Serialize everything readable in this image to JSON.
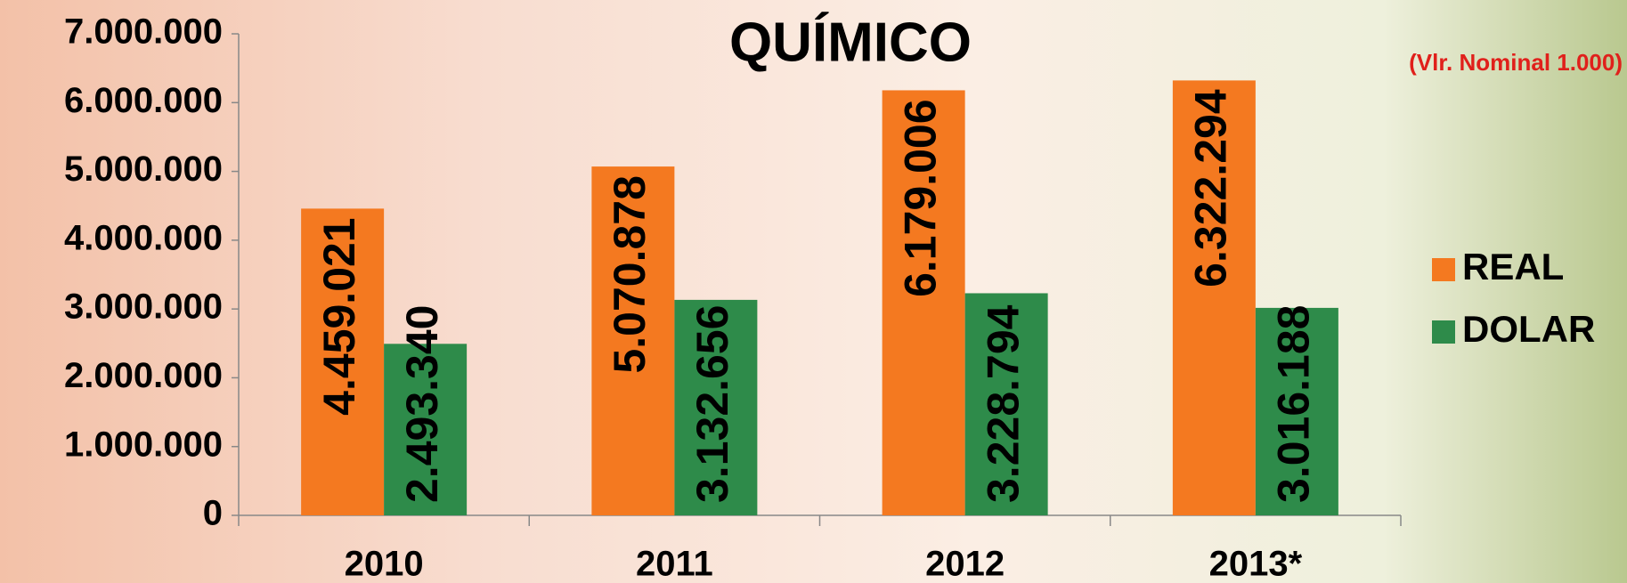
{
  "chart_data": {
    "type": "bar",
    "title": "QUÍMICO",
    "annotation": "(Vlr. Nominal 1.000)",
    "categories": [
      "2010",
      "2011",
      "2012",
      "2013*"
    ],
    "series": [
      {
        "name": "REAL",
        "color": "#f47920",
        "values": [
          4459021,
          5070878,
          6179006,
          6322294
        ],
        "value_labels": [
          "4.459.021",
          "5.070.878",
          "6.179.006",
          "6.322.294"
        ]
      },
      {
        "name": "DOLAR",
        "color": "#2e8b4a",
        "values": [
          2493340,
          3132656,
          3228794,
          3016188
        ],
        "value_labels": [
          "2.493.340",
          "3.132.656",
          "3.228.794",
          "3.016.188"
        ]
      }
    ],
    "ylim": [
      0,
      7000000
    ],
    "yticks": [
      0,
      {
        "value": 1000000,
        "label": "1.000.000"
      },
      {
        "value": 2000000,
        "label": "2.000.000"
      },
      {
        "value": 3000000,
        "label": "3.000.000"
      },
      {
        "value": 4000000,
        "label": "4.000.000"
      },
      {
        "value": 5000000,
        "label": "5.000.000"
      },
      {
        "value": 6000000,
        "label": "6.000.000"
      },
      {
        "value": 7000000,
        "label": "7.000.000"
      }
    ],
    "legend": "right"
  }
}
